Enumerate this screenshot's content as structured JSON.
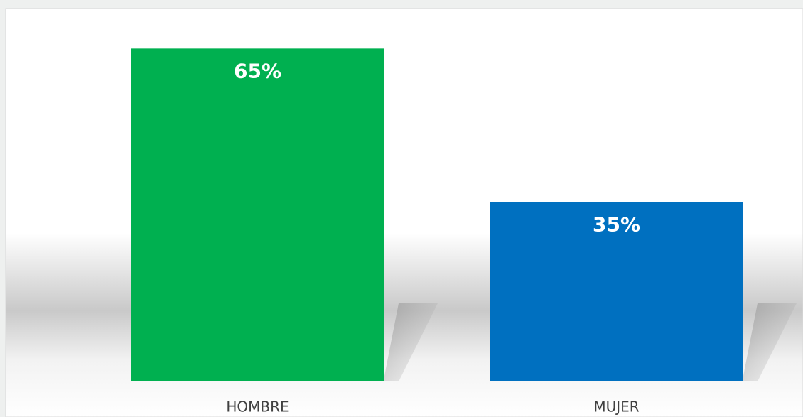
{
  "chart_data": {
    "type": "bar",
    "categories": [
      "HOMBRE",
      "MUJER"
    ],
    "values": [
      65,
      35
    ],
    "value_labels": [
      "65%",
      "35%"
    ],
    "colors": [
      "#00b050",
      "#0070c0"
    ]
  }
}
